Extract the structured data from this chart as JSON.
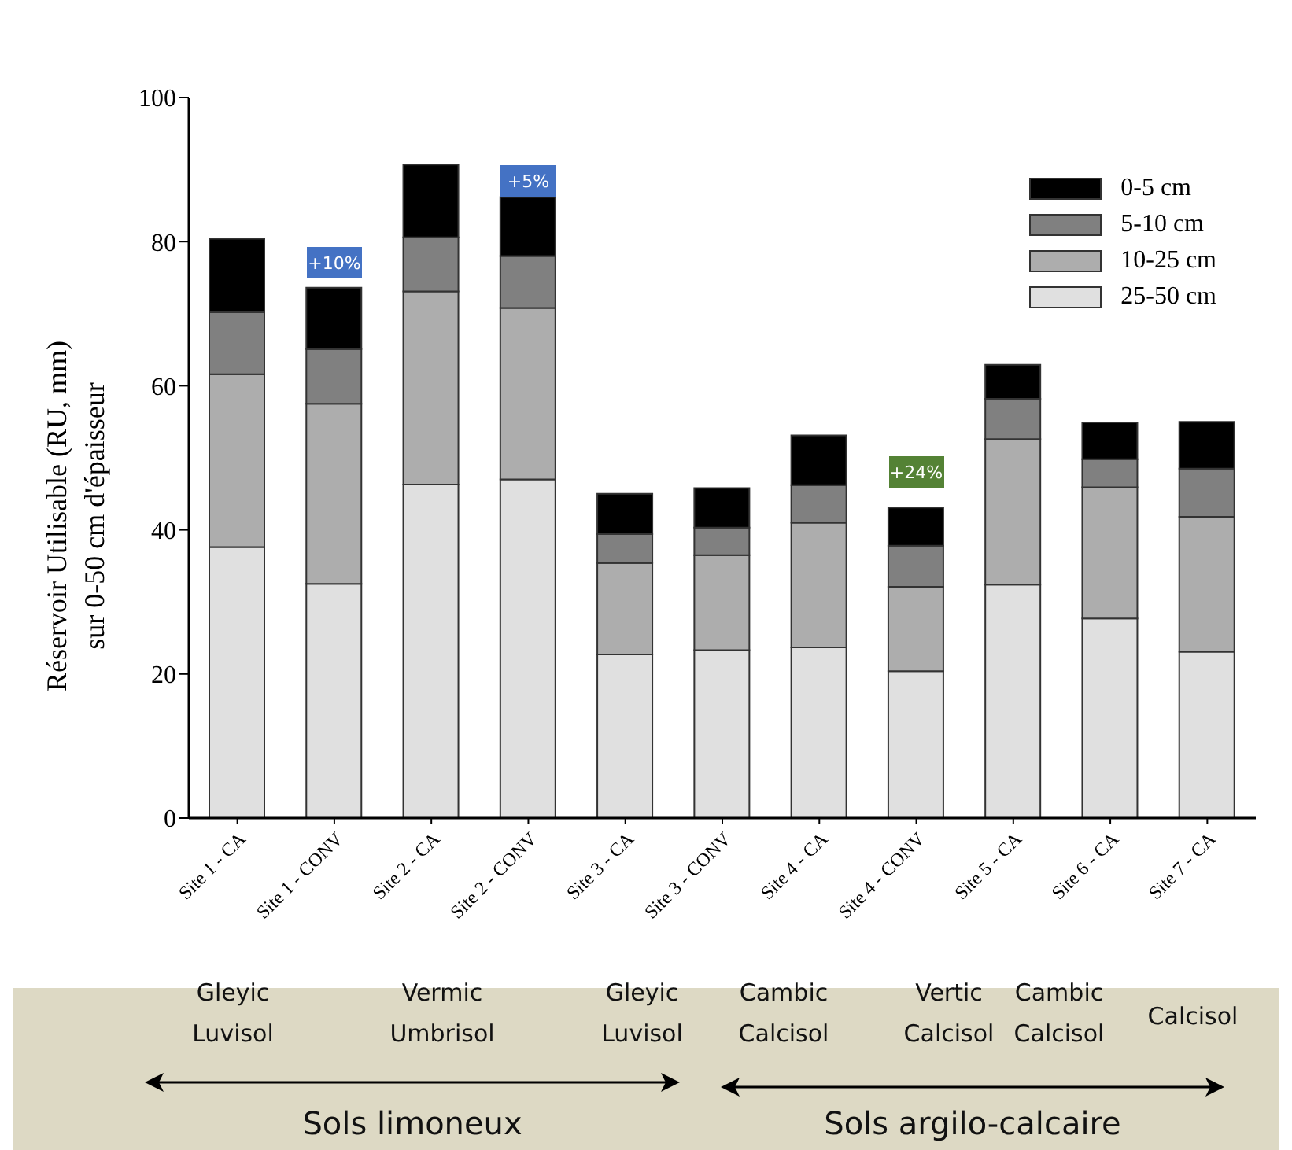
{
  "chart_data": {
    "type": "bar",
    "stacked": true,
    "ylabel": "Réservoir Utilisable (RU, mm)\nsur 0-50 cm d'épaisseur",
    "categories": [
      "Site 1 - CA",
      "Site 1 - CONV",
      "Site 2 - CA",
      "Site 2 - CONV",
      "Site 3 - CA",
      "Site 3 - CONV",
      "Site 4 - CA",
      "Site 4 - CONV",
      "Site 5 - CA",
      "Site 6 - CA",
      "Site 7 - CA"
    ],
    "series": [
      {
        "name": "25-50 cm",
        "color": "#e0e0e0",
        "values": [
          37.6,
          32.5,
          46.3,
          47.0,
          22.7,
          23.3,
          23.7,
          20.4,
          32.4,
          27.7,
          23.1
        ]
      },
      {
        "name": "10-25 cm",
        "color": "#adadad",
        "values": [
          24.0,
          25.0,
          26.8,
          23.8,
          12.7,
          13.2,
          17.3,
          11.7,
          20.2,
          18.2,
          18.7
        ]
      },
      {
        "name": "5-10 cm",
        "color": "#808080",
        "values": [
          8.6,
          7.6,
          7.5,
          7.2,
          4.0,
          3.8,
          5.2,
          5.7,
          5.6,
          3.9,
          6.7
        ]
      },
      {
        "name": "0-5 cm",
        "color": "#000000",
        "values": [
          10.2,
          8.5,
          10.1,
          8.2,
          5.6,
          5.5,
          6.9,
          5.3,
          4.7,
          5.1,
          6.5
        ]
      }
    ],
    "ylim": [
      0,
      100
    ],
    "yticks": [
      0,
      20,
      40,
      60,
      80,
      100
    ],
    "grid": false,
    "legend": "top right",
    "annotations": [
      "Gleyic Luvisol",
      "Vermic Umbrisol",
      "Gleyic Luvisol",
      "Cambic Calcisol",
      "Vertic Calcisol",
      "Cambic Calcisol",
      "Calcisol",
      "Sols limoneux",
      "Sols argilo-calcaire",
      {
        "text": "+10%",
        "x": "Site 1 - CONV",
        "y": 77
      },
      {
        "text": "+5%",
        "x": "Site 2 - CONV",
        "y": 88.4
      },
      {
        "text": "+24%",
        "x": "Site 4 - CONV",
        "y": 48
      }
    ]
  }
}
